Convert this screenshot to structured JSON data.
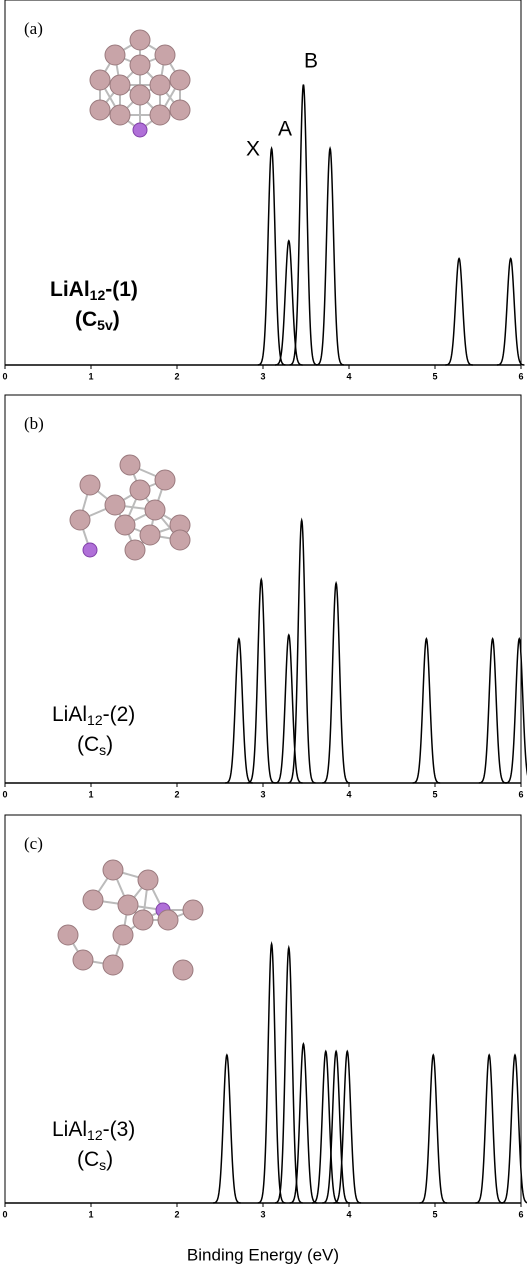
{
  "chart_data": [
    {
      "type": "spectrum",
      "panel_label": "(a)",
      "name": {
        "main": "LiAl",
        "sub": "12",
        "rest": "-(1)"
      },
      "symmetry": {
        "main": "(C",
        "sub": "5v",
        "rest": ")"
      },
      "annotations": [
        "X",
        "A",
        "B"
      ],
      "x": [
        3.1,
        3.3,
        3.47,
        3.78,
        5.28,
        5.88
      ],
      "values": [
        0.61,
        0.35,
        0.79,
        0.61,
        0.3,
        0.3
      ],
      "color": "#000000",
      "xlim": [
        0,
        6
      ],
      "xticks": [
        0,
        1,
        2,
        3,
        4,
        5,
        6
      ],
      "ylim": [
        0,
        1
      ]
    },
    {
      "type": "spectrum",
      "panel_label": "(b)",
      "name": {
        "main": "LiAl",
        "sub": "12",
        "rest": "-(2)"
      },
      "symmetry": {
        "main": "(C",
        "sub": "s",
        "rest": ")"
      },
      "x": [
        2.72,
        2.98,
        3.3,
        3.45,
        3.85,
        4.9,
        5.67,
        5.98
      ],
      "values": [
        0.39,
        0.55,
        0.4,
        0.71,
        0.54,
        0.39,
        0.39,
        0.39
      ],
      "color": "#000000",
      "xlim": [
        0,
        6
      ],
      "xticks": [
        0,
        1,
        2,
        3,
        4,
        5,
        6
      ],
      "ylim": [
        0,
        1
      ]
    },
    {
      "type": "spectrum",
      "panel_label": "(c)",
      "name": {
        "main": "LiAl",
        "sub": "12",
        "rest": "-(3)"
      },
      "symmetry": {
        "main": "(C",
        "sub": "s",
        "rest": ")"
      },
      "x": [
        2.58,
        3.1,
        3.3,
        3.47,
        3.73,
        3.85,
        3.98,
        4.98,
        5.63,
        5.93
      ],
      "values": [
        0.4,
        0.7,
        0.69,
        0.43,
        0.41,
        0.41,
        0.41,
        0.4,
        0.4,
        0.4
      ],
      "color": "#000000",
      "xlim": [
        0,
        6
      ],
      "xticks": [
        0,
        1,
        2,
        3,
        4,
        5,
        6
      ],
      "ylim": [
        0,
        1
      ],
      "xlabel": "Binding Energy (eV)"
    }
  ]
}
